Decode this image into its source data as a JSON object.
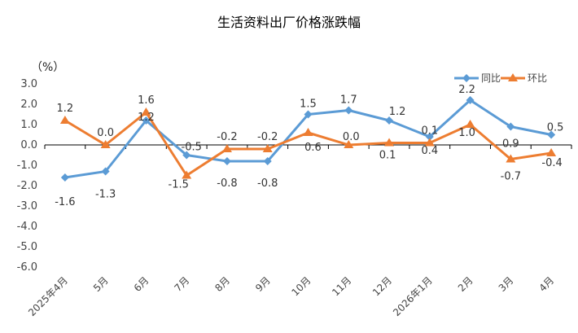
{
  "chart_data": {
    "type": "line",
    "title": "生活资料出厂价格涨跌幅",
    "unit": "（%）",
    "categories": [
      "2025年4月",
      "5月",
      "6月",
      "7月",
      "8月",
      "9月",
      "10月",
      "11月",
      "12月",
      "2026年1月",
      "2月",
      "3月",
      "4月"
    ],
    "series": [
      {
        "name": "同比",
        "color": "#5B9BD5",
        "marker": "diamond",
        "values": [
          -1.6,
          -1.3,
          1.2,
          -0.5,
          -0.8,
          -0.8,
          1.5,
          1.7,
          1.2,
          0.4,
          2.2,
          0.9,
          0.5
        ],
        "labels": [
          "-1.6",
          "-1.3",
          "1.2",
          "-0.5",
          "-0.8",
          "-0.8",
          "1.5",
          "1.7",
          "1.2",
          "0.4",
          "2.2",
          "0.9",
          "0.5"
        ]
      },
      {
        "name": "环比",
        "color": "#ED7D31",
        "marker": "triangle",
        "values": [
          1.2,
          0.0,
          1.6,
          -1.5,
          -0.2,
          -0.2,
          0.6,
          0.0,
          0.1,
          0.1,
          1.0,
          -0.7,
          -0.4
        ],
        "labels": [
          "1.2",
          "0.0",
          "1.6",
          "-1.5",
          "-0.2",
          "-0.2",
          "0.6",
          "0.0",
          "0.1",
          "0.1",
          "1.0",
          "-0.7",
          "-0.4"
        ]
      }
    ],
    "ylim": [
      -6.0,
      3.0
    ],
    "yticks": [
      "3.0",
      "2.0",
      "1.0",
      "0.0",
      "-1.0",
      "-2.0",
      "-3.0",
      "-4.0",
      "-5.0",
      "-6.0"
    ],
    "ytick_values": [
      3,
      2,
      1,
      0,
      -1,
      -2,
      -3,
      -4,
      -5,
      -6
    ],
    "grid": false,
    "legend_position": "top-right"
  }
}
